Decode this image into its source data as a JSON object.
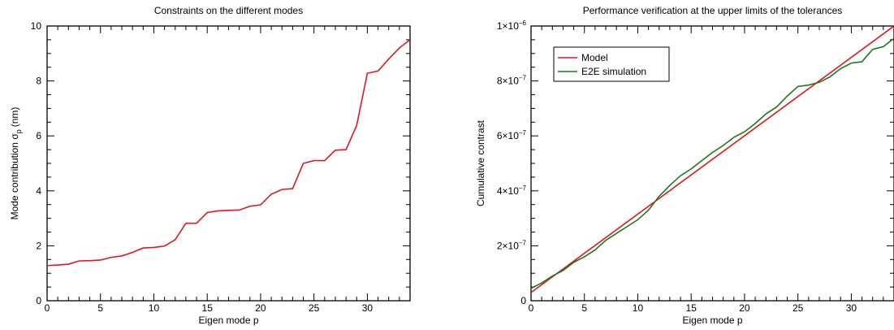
{
  "chart_data": [
    {
      "type": "line",
      "title": "Constraints on the different modes",
      "xlabel": "Eigen mode p",
      "ylabel": "Mode contribution σ",
      "ylabel_sub": "p",
      "ylabel_unit": "(nm)",
      "xlim": [
        0,
        34
      ],
      "ylim": [
        0,
        10
      ],
      "x_ticks": [
        0,
        5,
        10,
        15,
        20,
        25,
        30
      ],
      "x_tick_labels": [
        "0",
        "5",
        "10",
        "15",
        "20",
        "25",
        "30"
      ],
      "y_ticks": [
        0,
        2,
        4,
        6,
        8,
        10
      ],
      "y_tick_labels": [
        "0",
        "2",
        "4",
        "6",
        "8",
        "10"
      ],
      "series": [
        {
          "color": "#e8141b",
          "x": [
            0,
            1,
            2,
            3,
            4,
            5,
            6,
            7,
            8,
            9,
            10,
            11,
            12,
            13,
            14,
            15,
            16,
            17,
            18,
            19,
            20,
            21,
            22,
            23,
            24,
            25,
            26,
            27,
            28,
            29,
            30,
            31,
            32,
            33,
            34
          ],
          "y": [
            1.28,
            1.3,
            1.33,
            1.45,
            1.46,
            1.48,
            1.58,
            1.63,
            1.76,
            1.92,
            1.94,
            1.99,
            2.22,
            2.82,
            2.82,
            3.21,
            3.27,
            3.29,
            3.3,
            3.44,
            3.49,
            3.88,
            4.05,
            4.08,
            5.0,
            5.1,
            5.1,
            5.48,
            5.5,
            6.38,
            8.28,
            8.36,
            8.8,
            9.2,
            9.5
          ]
        }
      ]
    },
    {
      "type": "line",
      "title": "Performance verification at the upper limits of the tolerances",
      "xlabel": "Eigen mode p",
      "ylabel": "Cumulative contrast",
      "xlim": [
        0,
        34
      ],
      "ylim": [
        0,
        1e-06
      ],
      "x_ticks": [
        0,
        5,
        10,
        15,
        20,
        25,
        30
      ],
      "x_tick_labels": [
        "0",
        "5",
        "10",
        "15",
        "20",
        "25",
        "30"
      ],
      "y_ticks": [
        0,
        2e-07,
        4e-07,
        6e-07,
        8e-07,
        1e-06
      ],
      "y_tick_labels": [
        {
          "mant": "0",
          "exp": ""
        },
        {
          "mant": "2×10",
          "exp": "−7"
        },
        {
          "mant": "4×10",
          "exp": "−7"
        },
        {
          "mant": "6×10",
          "exp": "−7"
        },
        {
          "mant": "8×10",
          "exp": "−7"
        },
        {
          "mant": "1×10",
          "exp": "−6"
        }
      ],
      "legend": {
        "position": "top-left"
      },
      "series": [
        {
          "name": "Model",
          "color": "#e8141b",
          "x": [
            0,
            34
          ],
          "y": [
            3e-08,
            1e-06
          ]
        },
        {
          "name": "E2E simulation",
          "color": "#1a7a1a",
          "x": [
            0,
            1,
            2,
            3,
            4,
            5,
            6,
            7,
            8,
            9,
            10,
            11,
            12,
            13,
            14,
            15,
            16,
            17,
            18,
            19,
            20,
            21,
            22,
            23,
            24,
            25,
            26,
            27,
            28,
            29,
            30,
            31,
            32,
            33,
            34
          ],
          "y": [
            4.5e-08,
            6.5e-08,
            9e-08,
            1.1e-07,
            1.4e-07,
            1.6e-07,
            1.85e-07,
            2.2e-07,
            2.45e-07,
            2.7e-07,
            2.95e-07,
            3.3e-07,
            3.8e-07,
            4.2e-07,
            4.55e-07,
            4.8e-07,
            5.1e-07,
            5.4e-07,
            5.65e-07,
            5.95e-07,
            6.15e-07,
            6.45e-07,
            6.8e-07,
            7.05e-07,
            7.45e-07,
            7.8e-07,
            7.85e-07,
            7.95e-07,
            8.15e-07,
            8.45e-07,
            8.65e-07,
            8.7e-07,
            9.15e-07,
            9.25e-07,
            9.55e-07
          ]
        }
      ]
    }
  ]
}
